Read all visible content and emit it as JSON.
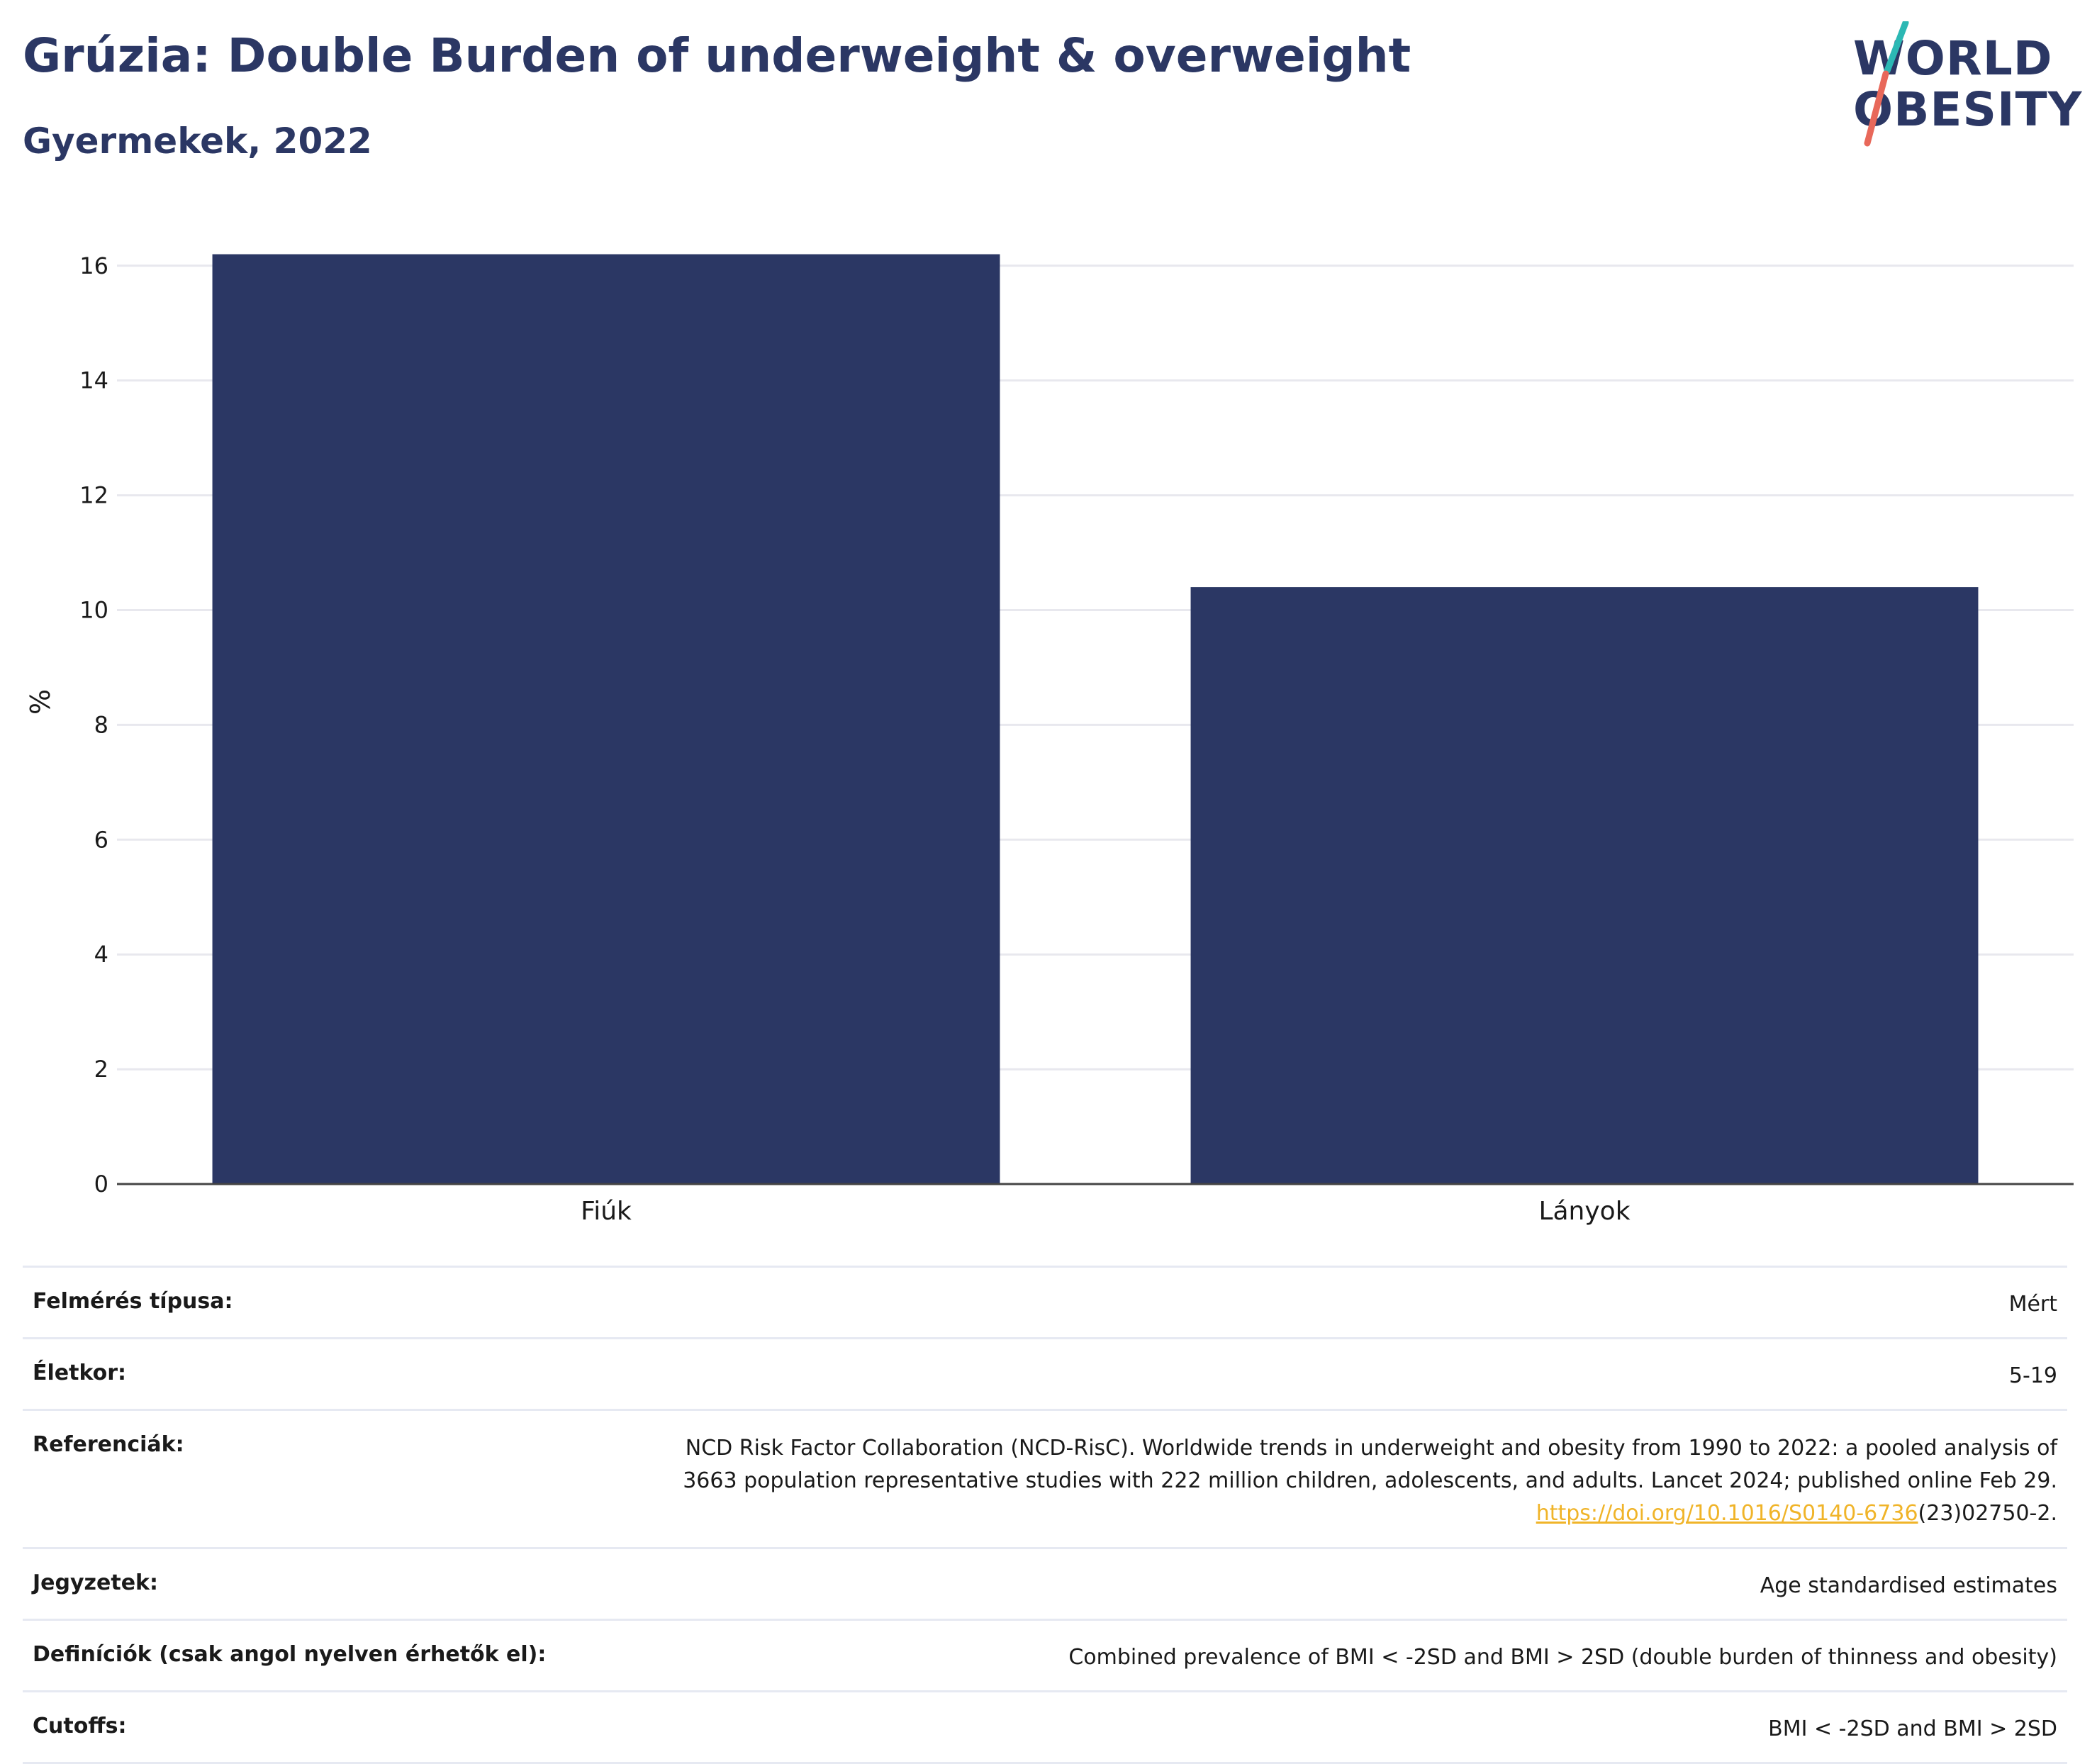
{
  "header": {
    "title": "Grúzia: Double Burden of underweight & overweight",
    "subtitle": "Gyermekek, 2022"
  },
  "logo": {
    "line1": "WORLD",
    "line2": "OBESITY",
    "colors": {
      "navy": "#2b3764",
      "teal": "#2cb8b4",
      "coral": "#e8685a"
    }
  },
  "chart_data": {
    "type": "bar",
    "categories": [
      "Fiúk",
      "Lányok"
    ],
    "values": [
      16.2,
      10.4
    ],
    "ylabel": "%",
    "ylim": [
      0,
      16.8
    ],
    "yticks": [
      0,
      2,
      4,
      6,
      8,
      10,
      12,
      14,
      16
    ],
    "grid": true,
    "bar_color": "#2b3764"
  },
  "meta": {
    "survey_label": "Felmérés típusa:",
    "survey_value": "Mért",
    "age_label": "Életkor:",
    "age_value": "5-19",
    "ref_label": "Referenciák:",
    "ref_line1": "NCD Risk Factor Collaboration (NCD-RisC). Worldwide trends in underweight and obesity from 1990 to 2022: a pooled analysis of",
    "ref_line2": "3663 population representative studies with 222 million children, adolescents, and adults. Lancet 2024; published online Feb 29.",
    "ref_link": "https://doi.org/10.1016/S0140-6736",
    "ref_tail": "(23)02750-2.",
    "notes_label": "Jegyzetek:",
    "notes_value": "Age standardised estimates",
    "def_label": "Definíciók (csak angol nyelven érhetők el):",
    "def_value": "Combined prevalence of BMI < -2SD and BMI > 2SD (double burden of thinness and obesity)",
    "cutoffs_label": "Cutoffs:",
    "cutoffs_value": "BMI < -2SD and BMI > 2SD"
  }
}
